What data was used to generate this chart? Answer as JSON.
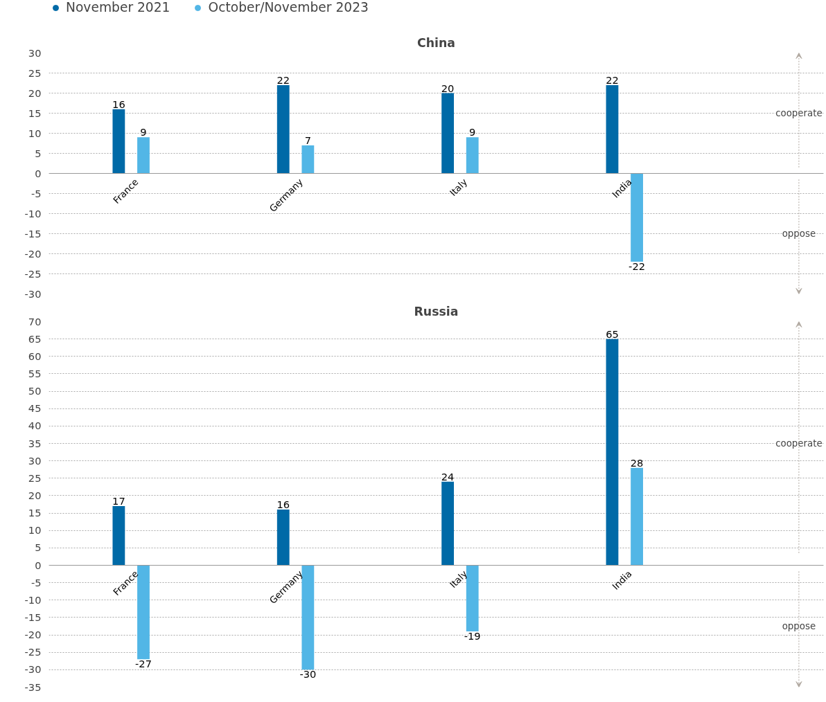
{
  "chart_data": [
    {
      "type": "bar",
      "title": "China",
      "categories": [
        "France",
        "Germany",
        "Italy",
        "India"
      ],
      "series": [
        {
          "name": "November 2021",
          "color": "#006aa7",
          "values": [
            16,
            22,
            20,
            22
          ]
        },
        {
          "name": "October/November 2023",
          "color": "#52b6e6",
          "values": [
            9,
            7,
            9,
            -22
          ]
        }
      ],
      "ylim": [
        -30,
        30
      ],
      "yticks": [
        -30,
        -25,
        -20,
        -15,
        -10,
        -5,
        0,
        5,
        10,
        15,
        20,
        25,
        30
      ],
      "grid": "y",
      "data_labels": true,
      "legend": "top",
      "annotations": [
        "cooperate",
        "oppose"
      ]
    },
    {
      "type": "bar",
      "title": "Russia",
      "categories": [
        "France",
        "Germany",
        "Italy",
        "India"
      ],
      "series": [
        {
          "color": "#006aa7",
          "values": [
            17,
            16,
            24,
            65
          ]
        },
        {
          "color": "#52b6e6",
          "values": [
            -27,
            -30,
            -19,
            28
          ]
        }
      ],
      "ylim": [
        -35,
        70
      ],
      "yticks": [
        -35,
        -30,
        -25,
        -20,
        -15,
        -10,
        -5,
        0,
        5,
        10,
        15,
        20,
        25,
        30,
        35,
        40,
        45,
        50,
        55,
        60,
        65,
        70
      ],
      "grid": "y",
      "data_labels": true,
      "annotations": [
        "cooperate",
        "oppose"
      ]
    }
  ]
}
